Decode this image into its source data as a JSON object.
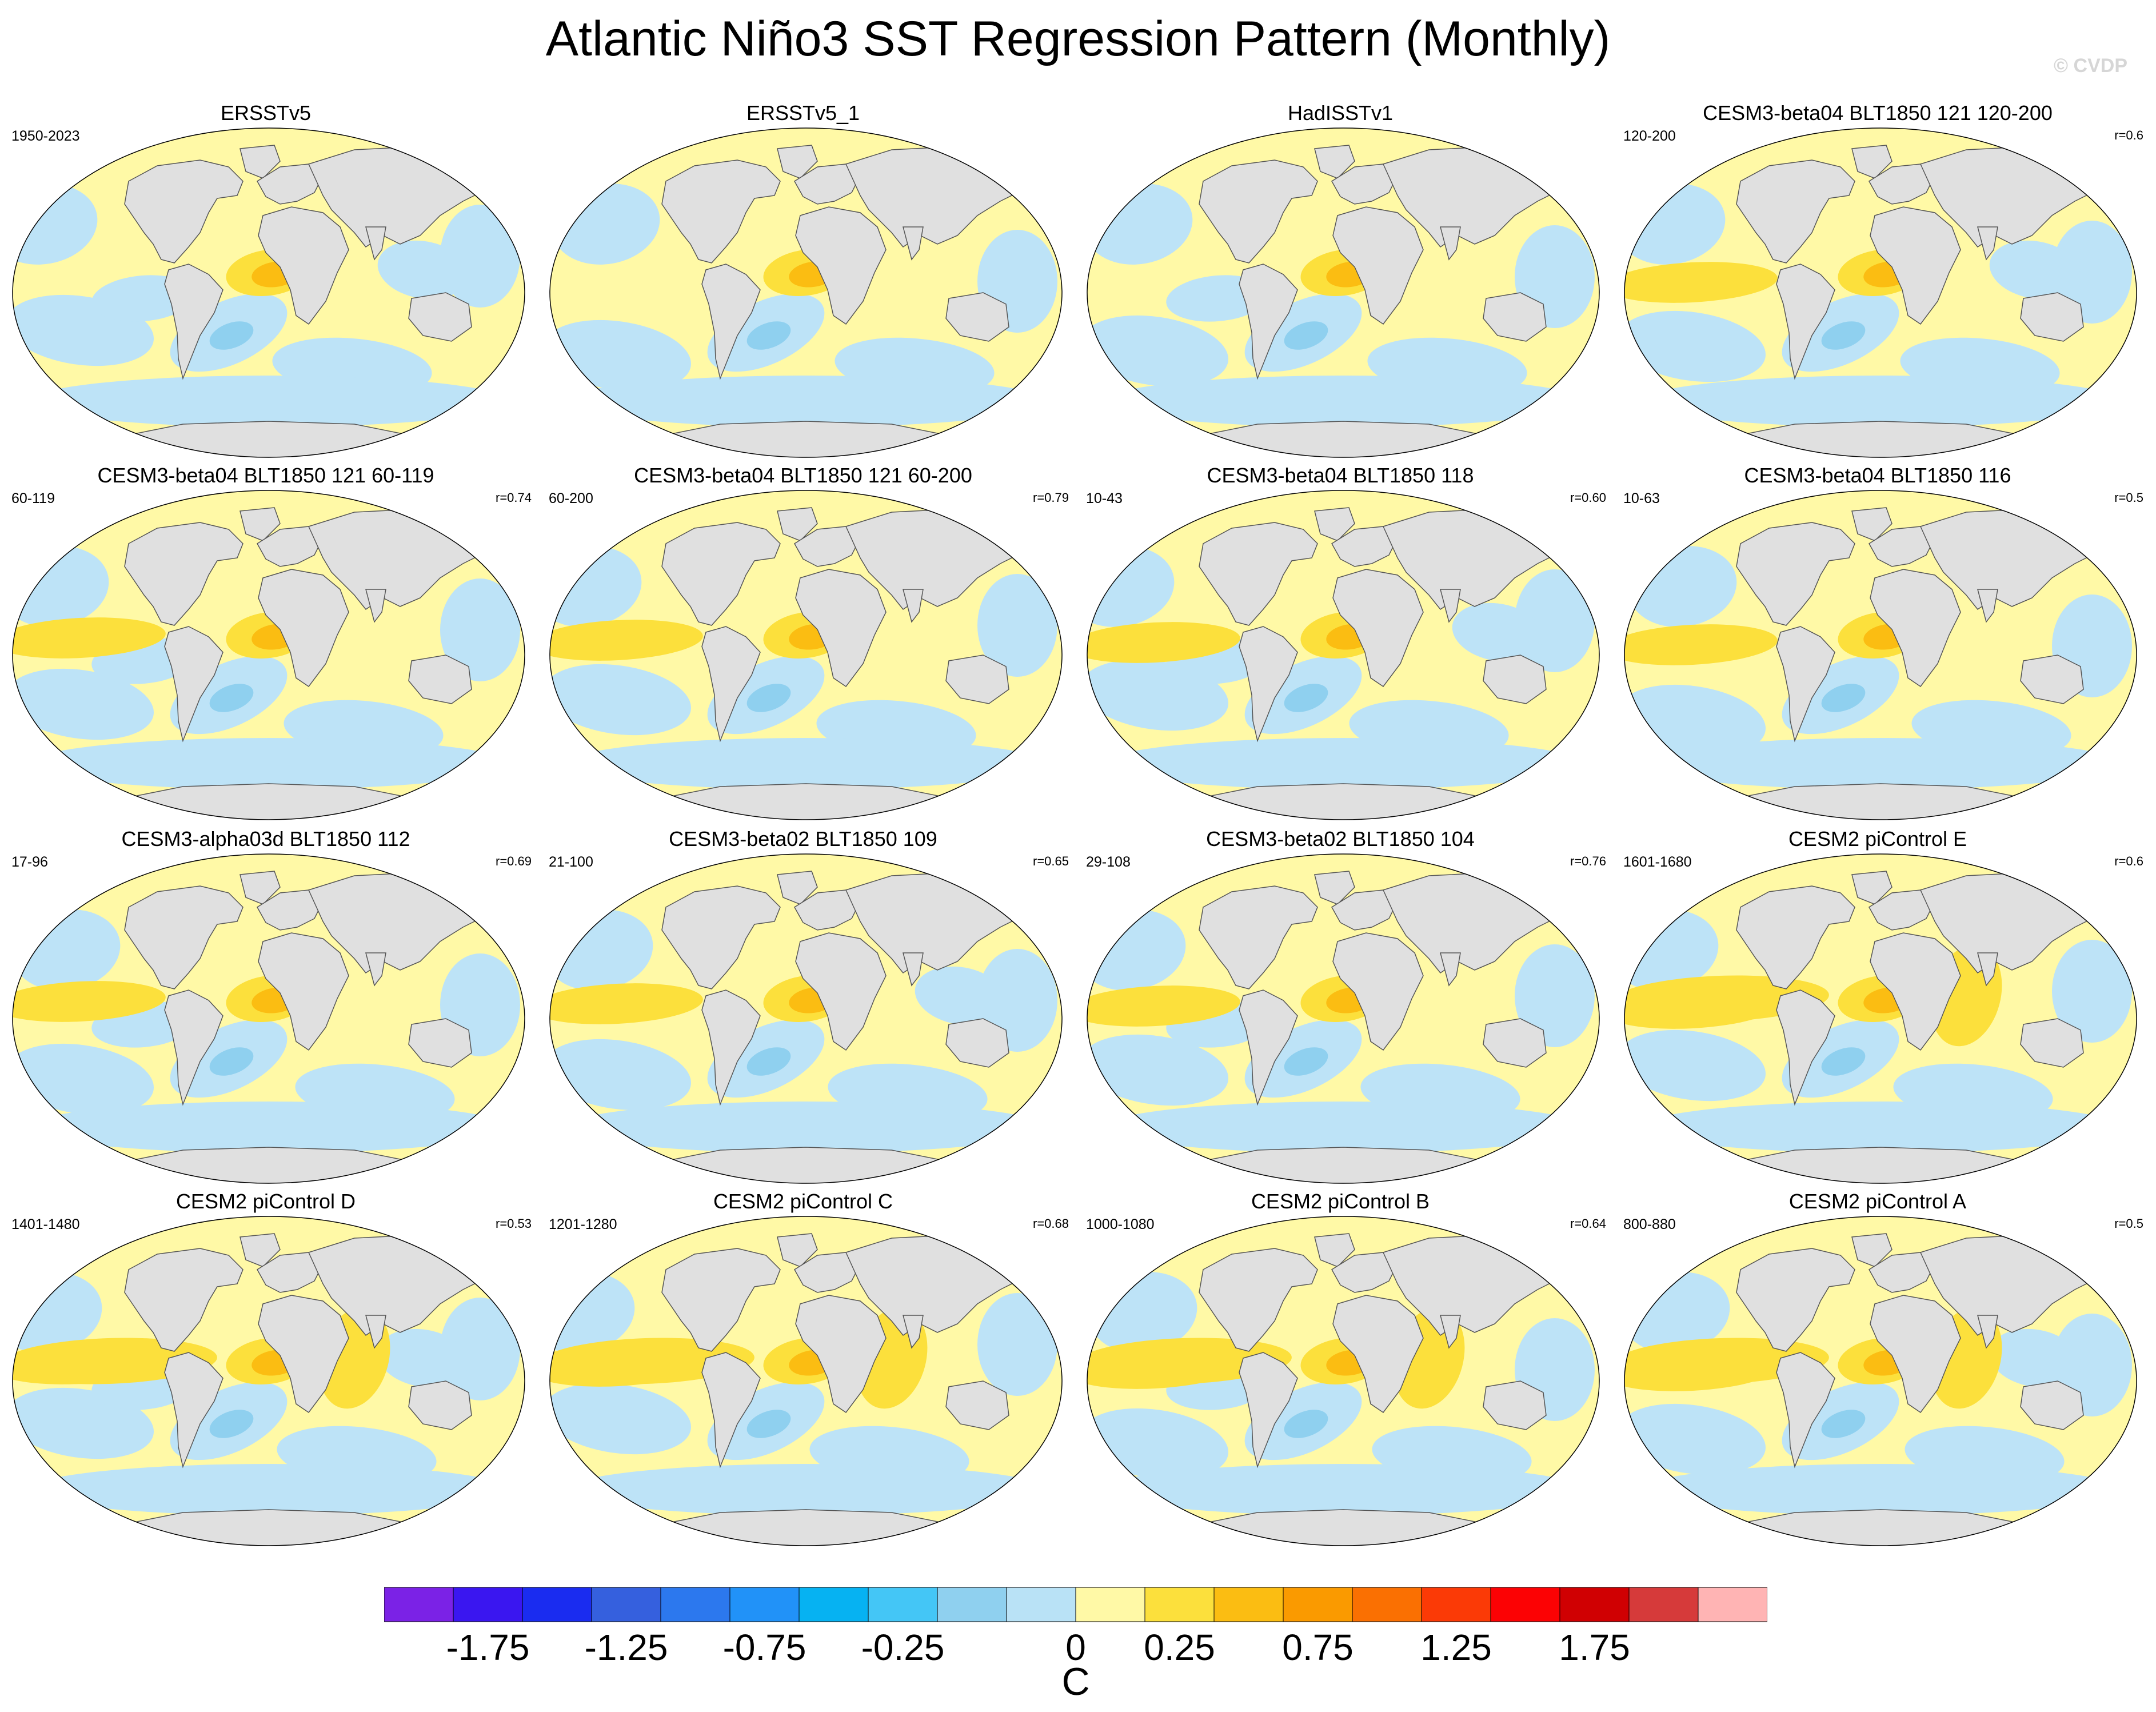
{
  "title": "Atlantic Niño3 SST Regression Pattern (Monthly)",
  "copyright": "© CVDP",
  "panels": [
    {
      "title": "ERSSTv5",
      "years": "1950-2023",
      "r": "",
      "variant": 0
    },
    {
      "title": "ERSSTv5_1",
      "years": "",
      "r": "",
      "variant": 1
    },
    {
      "title": "HadISSTv1",
      "years": "",
      "r": "",
      "variant": 2
    },
    {
      "title": "CESM3-beta04 BLT1850 121 120-200",
      "years": "120-200",
      "r": "r=0.6",
      "variant": 3
    },
    {
      "title": "CESM3-beta04 BLT1850 121 60-119",
      "years": "60-119",
      "r": "r=0.74",
      "variant": 4
    },
    {
      "title": "CESM3-beta04 BLT1850 121 60-200",
      "years": "60-200",
      "r": "r=0.79",
      "variant": 5
    },
    {
      "title": "CESM3-beta04 BLT1850 118",
      "years": "10-43",
      "r": "r=0.60",
      "variant": 6
    },
    {
      "title": "CESM3-beta04 BLT1850 116",
      "years": "10-63",
      "r": "r=0.5",
      "variant": 7
    },
    {
      "title": "CESM3-alpha03d BLT1850 112",
      "years": "17-96",
      "r": "r=0.69",
      "variant": 8
    },
    {
      "title": "CESM3-beta02 BLT1850 109",
      "years": "21-100",
      "r": "r=0.65",
      "variant": 9
    },
    {
      "title": "CESM3-beta02 BLT1850 104",
      "years": "29-108",
      "r": "r=0.76",
      "variant": 10
    },
    {
      "title": "CESM2 piControl E",
      "years": "1601-1680",
      "r": "r=0.6",
      "variant": 11
    },
    {
      "title": "CESM2 piControl D",
      "years": "1401-1480",
      "r": "r=0.53",
      "variant": 12
    },
    {
      "title": "CESM2 piControl C",
      "years": "1201-1280",
      "r": "r=0.68",
      "variant": 13
    },
    {
      "title": "CESM2 piControl B",
      "years": "1000-1080",
      "r": "r=0.64",
      "variant": 14
    },
    {
      "title": "CESM2 piControl A",
      "years": "800-880",
      "r": "r=0.5",
      "variant": 15
    }
  ],
  "colorbar": {
    "colors": [
      "#7b22e6",
      "#3a16f0",
      "#1a2cf0",
      "#3560de",
      "#2c78ee",
      "#2192f8",
      "#06b2f2",
      "#44c6f6",
      "#8fd0ef",
      "#b9e2f6",
      "#fff9a6",
      "#fce03c",
      "#fbbd12",
      "#fa9a00",
      "#fa7002",
      "#fb3a06",
      "#fc0204",
      "#d00002",
      "#d63a3a",
      "#ffb4b4"
    ],
    "tick_labels": [
      "-1.75",
      "-1.25",
      "-0.75",
      "-0.25",
      "0",
      "0.25",
      "0.75",
      "1.25",
      "1.75"
    ],
    "tick_boundaries": [
      1,
      3,
      5,
      7,
      10,
      11,
      13,
      15,
      17
    ],
    "unit": "C"
  },
  "map_colors": {
    "ocean_positive": "#fff9a6",
    "ocean_negative": "#bde3f7",
    "negative_strong": "#8fd0ef",
    "positive_mid": "#fce03c",
    "positive_strong": "#fbbd12",
    "land": "#e0e0e0",
    "coast": "#555555"
  }
}
